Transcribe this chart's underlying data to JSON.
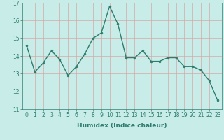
{
  "x": [
    0,
    1,
    2,
    3,
    4,
    5,
    6,
    7,
    8,
    9,
    10,
    11,
    12,
    13,
    14,
    15,
    16,
    17,
    18,
    19,
    20,
    21,
    22,
    23
  ],
  "y": [
    14.6,
    13.1,
    13.6,
    14.3,
    13.8,
    12.9,
    13.4,
    14.1,
    15.0,
    15.3,
    16.8,
    15.8,
    13.9,
    13.9,
    14.3,
    13.7,
    13.7,
    13.9,
    13.9,
    13.4,
    13.4,
    13.2,
    12.6,
    11.5
  ],
  "line_color": "#2d7c6e",
  "marker": "o",
  "markersize": 2.0,
  "linewidth": 1.0,
  "xlabel": "Humidex (Indice chaleur)",
  "xlim": [
    -0.5,
    23.5
  ],
  "ylim": [
    11,
    17
  ],
  "yticks": [
    11,
    12,
    13,
    14,
    15,
    16,
    17
  ],
  "xticks": [
    0,
    1,
    2,
    3,
    4,
    5,
    6,
    7,
    8,
    9,
    10,
    11,
    12,
    13,
    14,
    15,
    16,
    17,
    18,
    19,
    20,
    21,
    22,
    23
  ],
  "bg_color": "#c8ece8",
  "grid_color_v": "#d4a8a8",
  "grid_color_h": "#d4a8a8",
  "xlabel_fontsize": 6.5,
  "tick_fontsize": 5.5
}
